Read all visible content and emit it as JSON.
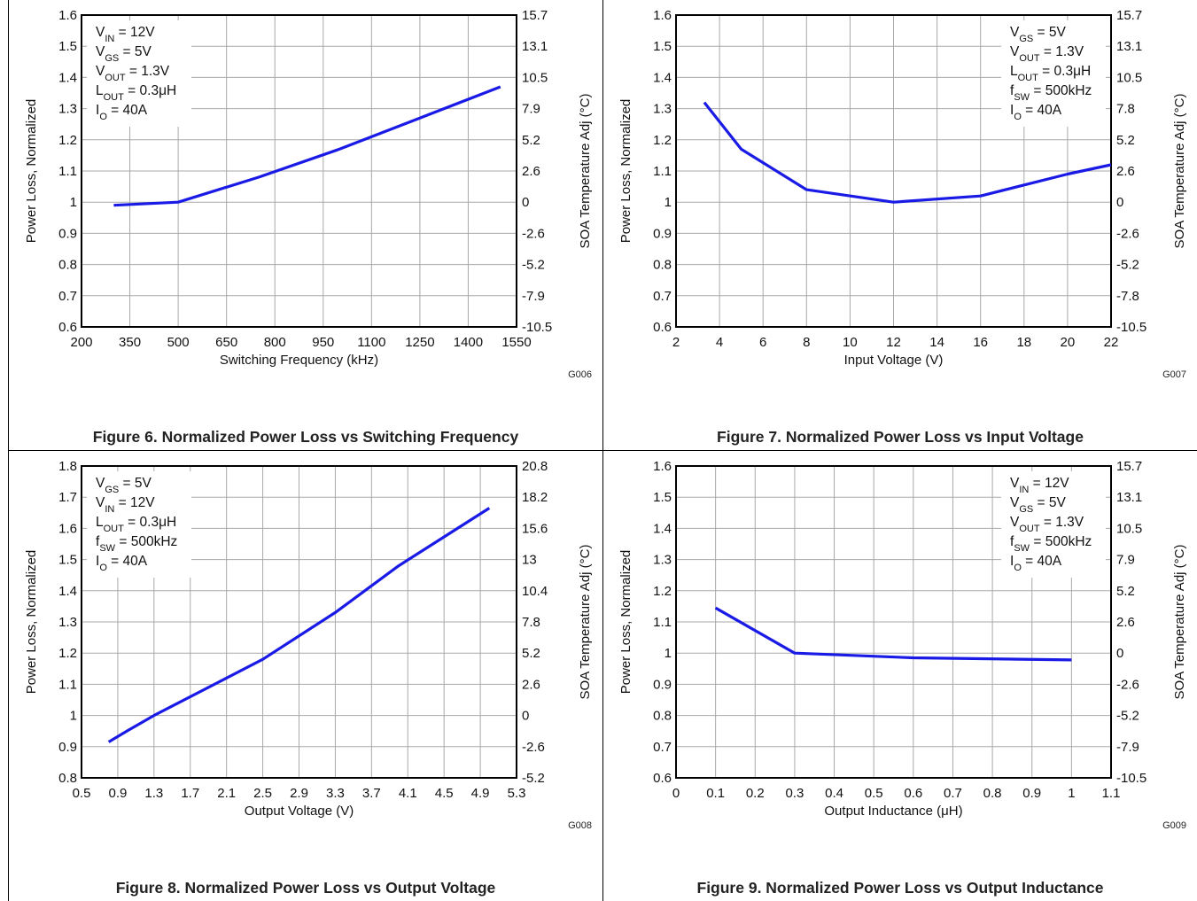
{
  "chart_data": [
    {
      "type": "line",
      "caption": "Figure 6. Normalized Power Loss vs Switching Frequency",
      "xlabel": "Switching Frequency (kHz)",
      "ylabel": "Power Loss, Normalized",
      "y2label": "SOA Temperature Adj (°C)",
      "xlim": [
        200,
        1550
      ],
      "ylim": [
        0.6,
        1.6
      ],
      "xticks": [
        "200",
        "350",
        "500",
        "650",
        "800",
        "950",
        "1100",
        "1250",
        "1400",
        "1550"
      ],
      "yticks": [
        "0.6",
        "0.7",
        "0.8",
        "0.9",
        "1",
        "1.1",
        "1.2",
        "1.3",
        "1.4",
        "1.5",
        "1.6"
      ],
      "y2ticks": [
        "-10.5",
        "-7.9",
        "-5.2",
        "-2.6",
        "0",
        "2.6",
        "5.2",
        "7.9",
        "10.5",
        "13.1",
        "15.7"
      ],
      "grid": true,
      "code": "G006",
      "conditions_position": "top-left",
      "conditions": [
        {
          "main": "V",
          "sub": "IN",
          "rest": " = 12V"
        },
        {
          "main": "V",
          "sub": "GS",
          "rest": " = 5V"
        },
        {
          "main": "V",
          "sub": "OUT",
          "rest": " = 1.3V"
        },
        {
          "main": "L",
          "sub": "OUT",
          "rest": " = 0.3μH"
        },
        {
          "main": "I",
          "sub": "O",
          "rest": " = 40A"
        }
      ],
      "series": [
        {
          "x": [
            300,
            500,
            750,
            1000,
            1250,
            1500
          ],
          "y": [
            0.99,
            1.0,
            1.08,
            1.17,
            1.27,
            1.37
          ]
        }
      ]
    },
    {
      "type": "line",
      "caption": "Figure 7. Normalized Power Loss vs Input Voltage",
      "xlabel": "Input Voltage (V)",
      "ylabel": "Power Loss, Normalized",
      "y2label": "SOA Temperature Adj (°C)",
      "xlim": [
        2,
        22
      ],
      "ylim": [
        0.6,
        1.6
      ],
      "xticks": [
        "2",
        "4",
        "6",
        "8",
        "10",
        "12",
        "14",
        "16",
        "18",
        "20",
        "22"
      ],
      "yticks": [
        "0.6",
        "0.7",
        "0.8",
        "0.9",
        "1",
        "1.1",
        "1.2",
        "1.3",
        "1.4",
        "1.5",
        "1.6"
      ],
      "y2ticks": [
        "-10.5",
        "-7.8",
        "-5.2",
        "-2.6",
        "0",
        "2.6",
        "5.2",
        "7.8",
        "10.5",
        "13.1",
        "15.7"
      ],
      "grid": true,
      "code": "G007",
      "conditions_position": "top-right",
      "conditions": [
        {
          "main": "V",
          "sub": "GS",
          "rest": " = 5V"
        },
        {
          "main": "V",
          "sub": "OUT",
          "rest": " = 1.3V"
        },
        {
          "main": "L",
          "sub": "OUT",
          "rest": " = 0.3μH"
        },
        {
          "main": "f",
          "sub": "SW",
          "rest": " = 500kHz"
        },
        {
          "main": "I",
          "sub": "O",
          "rest": " = 40A"
        }
      ],
      "series": [
        {
          "x": [
            3.3,
            5,
            8,
            12,
            16,
            20,
            22
          ],
          "y": [
            1.32,
            1.17,
            1.04,
            1.0,
            1.02,
            1.09,
            1.12
          ]
        }
      ]
    },
    {
      "type": "line",
      "caption": "Figure 8. Normalized Power Loss vs Output Voltage",
      "xlabel": "Output Voltage (V)",
      "ylabel": "Power Loss, Normalized",
      "y2label": "SOA Temperature Adj (°C)",
      "xlim": [
        0.5,
        5.3
      ],
      "ylim": [
        0.8,
        1.8
      ],
      "xticks": [
        "0.5",
        "0.9",
        "1.3",
        "1.7",
        "2.1",
        "2.5",
        "2.9",
        "3.3",
        "3.7",
        "4.1",
        "4.5",
        "4.9",
        "5.3"
      ],
      "yticks": [
        "0.8",
        "0.9",
        "1",
        "1.1",
        "1.2",
        "1.3",
        "1.4",
        "1.5",
        "1.6",
        "1.7",
        "1.8"
      ],
      "y2ticks": [
        "-5.2",
        "-2.6",
        "0",
        "2.6",
        "5.2",
        "7.8",
        "10.4",
        "13",
        "15.6",
        "18.2",
        "20.8"
      ],
      "grid": true,
      "code": "G008",
      "conditions_position": "top-left",
      "conditions": [
        {
          "main": "V",
          "sub": "GS",
          "rest": " = 5V"
        },
        {
          "main": "V",
          "sub": "IN",
          "rest": " = 12V"
        },
        {
          "main": "L",
          "sub": "OUT",
          "rest": " = 0.3μH"
        },
        {
          "main": "f",
          "sub": "SW",
          "rest": " = 500kHz"
        },
        {
          "main": "I",
          "sub": "O",
          "rest": " = 40A"
        }
      ],
      "series": [
        {
          "x": [
            0.8,
            1.0,
            1.3,
            2.5,
            3.3,
            4.0,
            5.0
          ],
          "y": [
            0.915,
            0.95,
            1.0,
            1.18,
            1.33,
            1.48,
            1.665
          ]
        }
      ]
    },
    {
      "type": "line",
      "caption": "Figure 9. Normalized Power Loss vs Output Inductance",
      "xlabel": "Output Inductance (μH)",
      "ylabel": "Power Loss, Normalized",
      "y2label": "SOA Temperature Adj (°C)",
      "xlim": [
        0,
        1.1
      ],
      "ylim": [
        0.6,
        1.6
      ],
      "xticks": [
        "0",
        "0.1",
        "0.2",
        "0.3",
        "0.4",
        "0.5",
        "0.6",
        "0.7",
        "0.8",
        "0.9",
        "1",
        "1.1"
      ],
      "yticks": [
        "0.6",
        "0.7",
        "0.8",
        "0.9",
        "1",
        "1.1",
        "1.2",
        "1.3",
        "1.4",
        "1.5",
        "1.6"
      ],
      "y2ticks": [
        "-10.5",
        "-7.9",
        "-5.2",
        "-2.6",
        "0",
        "2.6",
        "5.2",
        "7.9",
        "10.5",
        "13.1",
        "15.7"
      ],
      "grid": true,
      "code": "G009",
      "conditions_position": "top-right",
      "conditions": [
        {
          "main": "V",
          "sub": "IN",
          "rest": " = 12V"
        },
        {
          "main": "V",
          "sub": "GS",
          "rest": " = 5V"
        },
        {
          "main": "V",
          "sub": "OUT",
          "rest": " = 1.3V"
        },
        {
          "main": "f",
          "sub": "SW",
          "rest": " = 500kHz"
        },
        {
          "main": "I",
          "sub": "O",
          "rest": " = 40A"
        }
      ],
      "series": [
        {
          "x": [
            0.1,
            0.3,
            0.6,
            1.0
          ],
          "y": [
            1.145,
            1.0,
            0.985,
            0.978
          ]
        }
      ]
    }
  ],
  "style": {
    "line_color": "#1a1ae6",
    "grid_color": "#a8a8a8",
    "axis_color": "#000000"
  }
}
